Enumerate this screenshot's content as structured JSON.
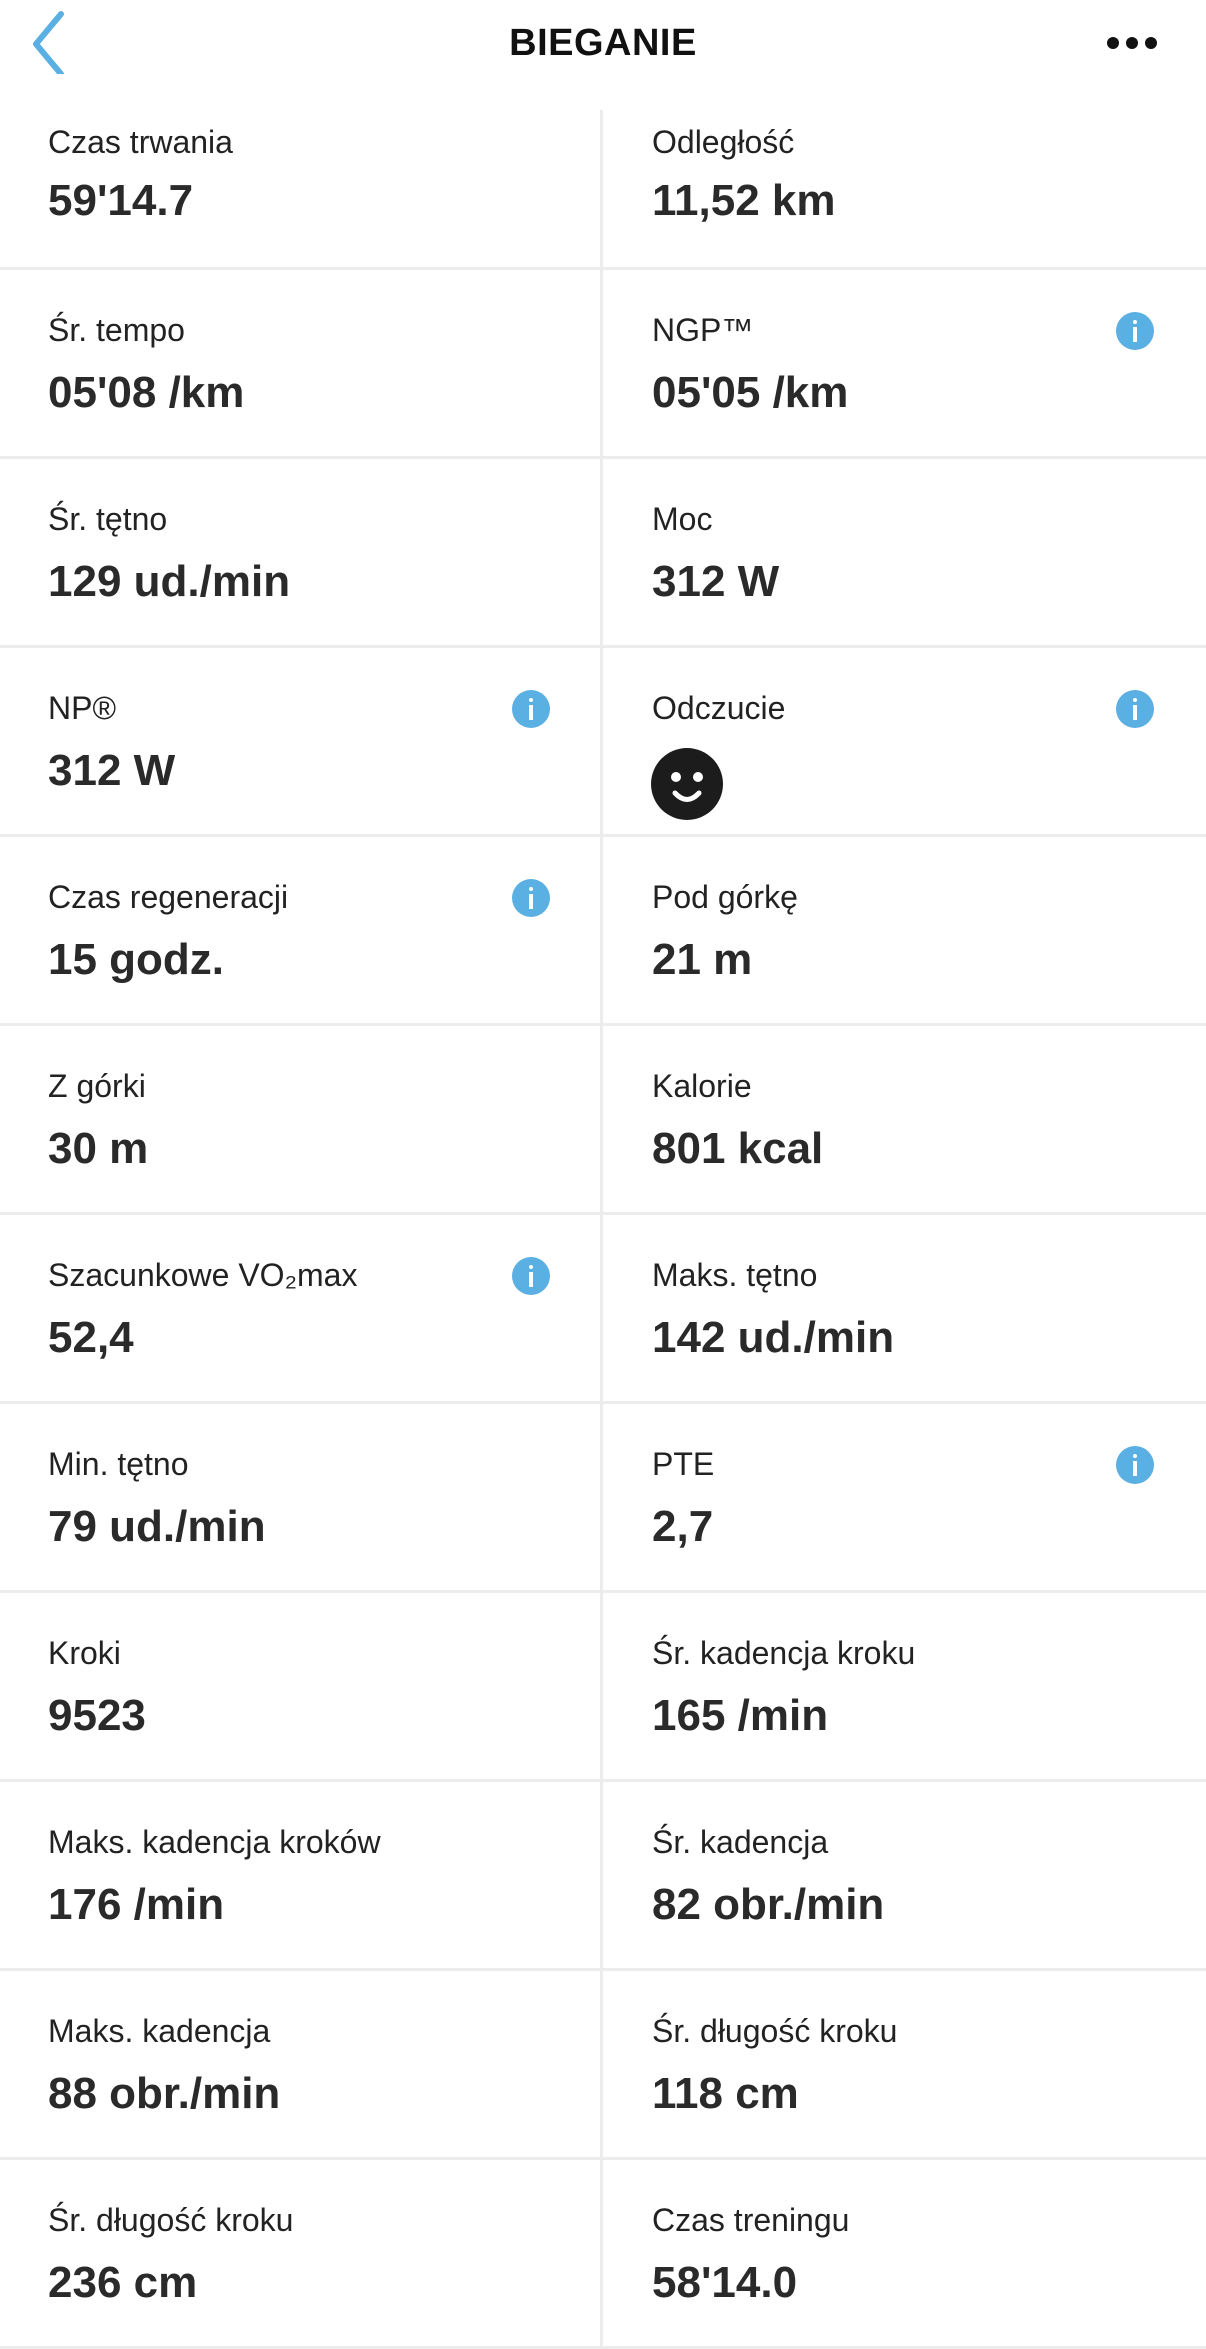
{
  "header": {
    "title": "BIEGANIE",
    "back_icon": "chevron-left-icon",
    "menu_icon": "more-horizontal-icon",
    "accent": "#5aafe3"
  },
  "stats": [
    {
      "label": "Czas trwania",
      "value": "59'14.7",
      "info": false
    },
    {
      "label": "Odległość",
      "value": "11,52 km",
      "info": false
    },
    {
      "label": "Śr. tempo",
      "value": "05'08 /km",
      "info": false
    },
    {
      "label": "NGP™",
      "value": "05'05 /km",
      "info": true
    },
    {
      "label": "Śr. tętno",
      "value": "129 ud./min",
      "info": false
    },
    {
      "label": "Moc",
      "value": "312 W",
      "info": false
    },
    {
      "label": "NP®",
      "value": "312 W",
      "info": true
    },
    {
      "label": "Odczucie",
      "value": "",
      "icon": "smiley-face-icon",
      "info": true
    },
    {
      "label": "Czas regeneracji",
      "value": "15 godz.",
      "info": true
    },
    {
      "label": "Pod górkę",
      "value": "21 m",
      "info": false
    },
    {
      "label": "Z górki",
      "value": "30 m",
      "info": false
    },
    {
      "label": "Kalorie",
      "value": "801 kcal",
      "info": false
    },
    {
      "label": "Szacunkowe VO₂max",
      "value": "52,4",
      "info": true
    },
    {
      "label": "Maks. tętno",
      "value": "142 ud./min",
      "info": false
    },
    {
      "label": "Min. tętno",
      "value": "79 ud./min",
      "info": false
    },
    {
      "label": "PTE",
      "value": "2,7",
      "info": true
    },
    {
      "label": "Kroki",
      "value": "9523",
      "info": false
    },
    {
      "label": "Śr. kadencja kroku",
      "value": "165 /min",
      "info": false
    },
    {
      "label": "Maks. kadencja kroków",
      "value": "176 /min",
      "info": false
    },
    {
      "label": "Śr. kadencja",
      "value": "82 obr./min",
      "info": false
    },
    {
      "label": "Maks. kadencja",
      "value": "88 obr./min",
      "info": false
    },
    {
      "label": "Śr. długość kroku",
      "value": "118 cm",
      "info": false
    },
    {
      "label": "Śr. długość kroku",
      "value": "236 cm",
      "info": false
    },
    {
      "label": "Czas treningu",
      "value": "58'14.0",
      "info": false
    }
  ]
}
